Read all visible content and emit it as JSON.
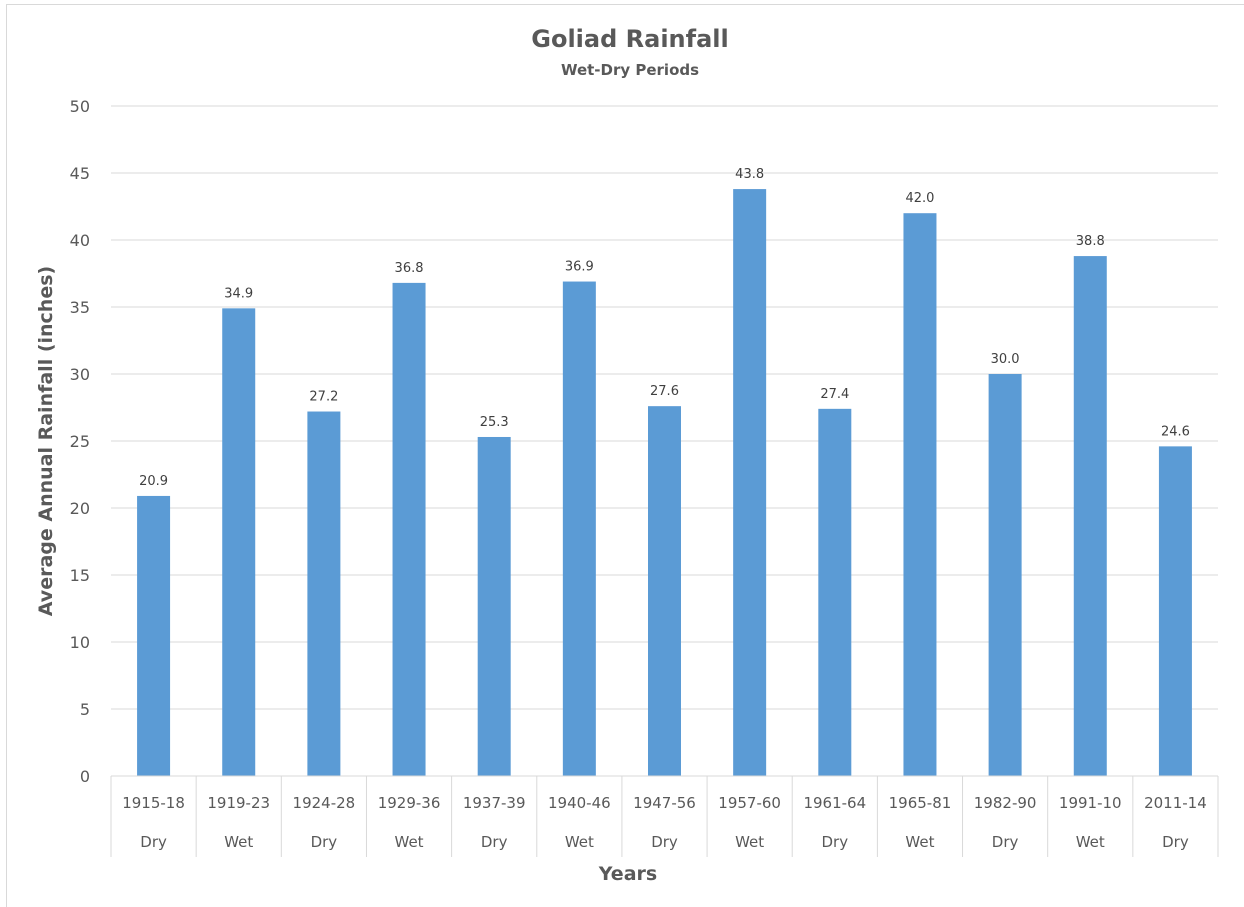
{
  "chart_data": {
    "type": "bar",
    "title": "Goliad Rainfall",
    "subtitle": "Wet-Dry Periods",
    "xlabel": "Years",
    "ylabel": "Average Annual Rainfall (inches)",
    "ylim": [
      0,
      50
    ],
    "yticks": [
      0,
      5,
      10,
      15,
      20,
      25,
      30,
      35,
      40,
      45,
      50
    ],
    "grid": true,
    "categories": [
      "1915-18",
      "1919-23",
      "1924-28",
      "1929-36",
      "1937-39",
      "1940-46",
      "1947-56",
      "1957-60",
      "1961-64",
      "1965-81",
      "1982-90",
      "1991-10",
      "2011-14"
    ],
    "category_groups": [
      "Dry",
      "Wet",
      "Dry",
      "Wet",
      "Dry",
      "Wet",
      "Dry",
      "Wet",
      "Dry",
      "Wet",
      "Dry",
      "Wet",
      "Dry"
    ],
    "values": [
      20.9,
      34.9,
      27.2,
      36.8,
      25.3,
      36.9,
      27.6,
      43.8,
      27.4,
      42.0,
      30.0,
      38.8,
      24.6
    ],
    "data_labels": [
      "20.9",
      "34.9",
      "27.2",
      "36.8",
      "25.3",
      "36.9",
      "27.6",
      "43.8",
      "27.4",
      "42.0",
      "30.0",
      "38.8",
      "24.6"
    ],
    "colors": {
      "bar": "#5b9bd5",
      "grid": "#d9d9d9",
      "text": "#595959"
    }
  }
}
